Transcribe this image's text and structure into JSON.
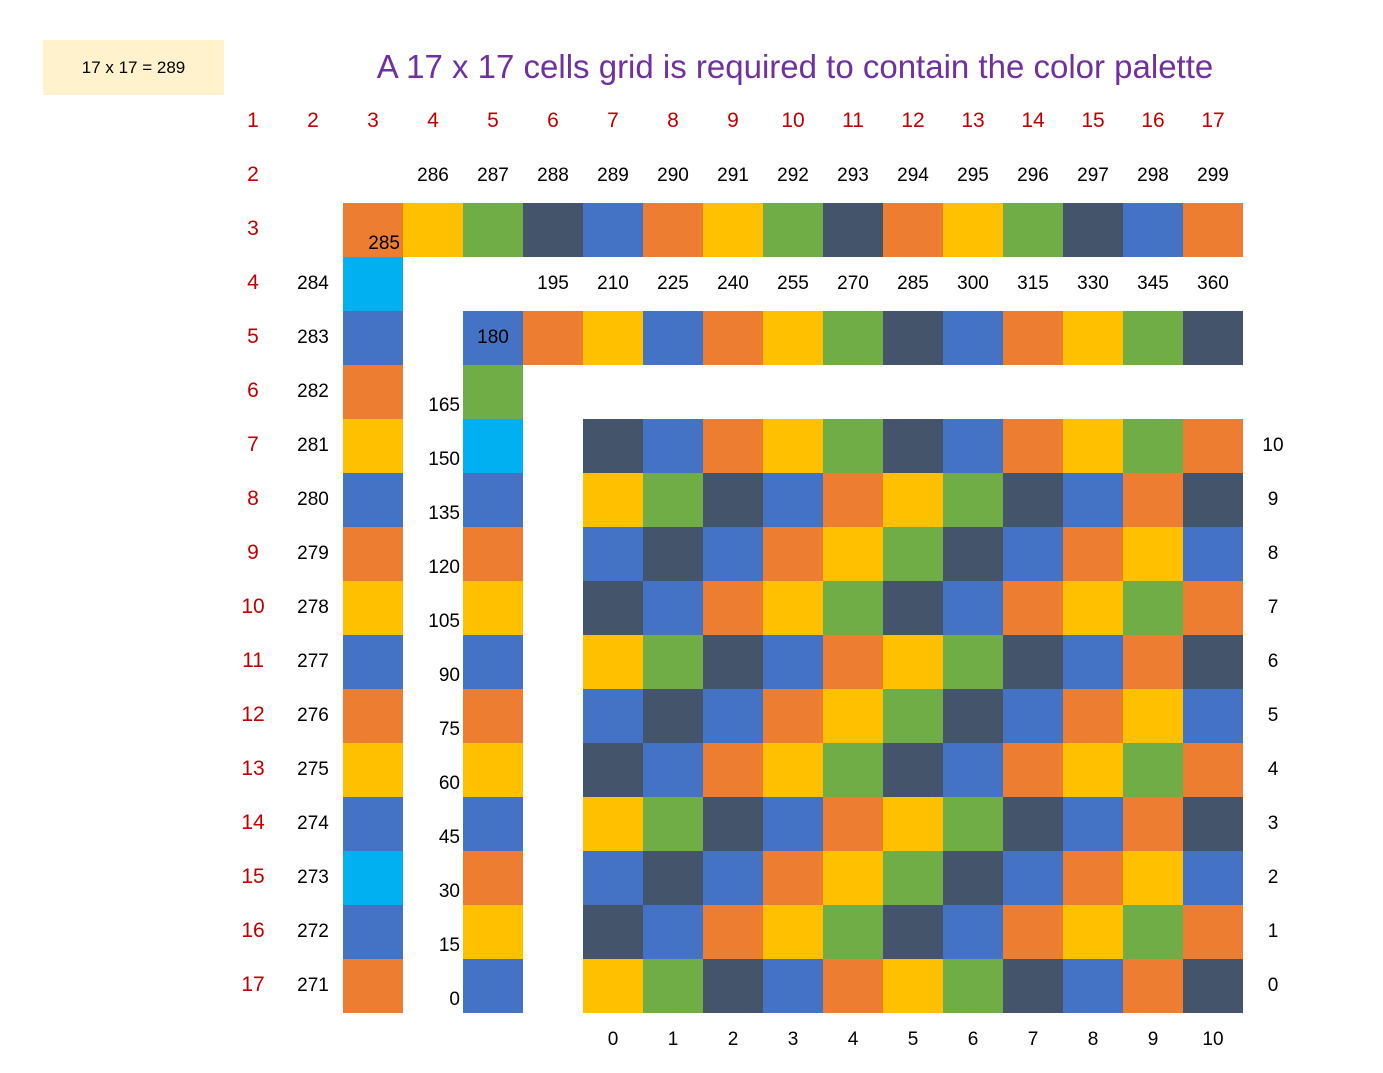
{
  "badge": "17 x 17 = 289",
  "title": "A 17 x 17 cells grid is required to contain the color palette",
  "colors": {
    "O": "#ED7D31",
    "Y": "#FFC000",
    "G": "#70AD47",
    "D": "#44546A",
    "B": "#4472C4",
    "C": "#00B0F0"
  },
  "column_headers": [
    "1",
    "2",
    "3",
    "4",
    "5",
    "6",
    "7",
    "8",
    "9",
    "10",
    "11",
    "12",
    "13",
    "14",
    "15",
    "16",
    "17"
  ],
  "row_headers": [
    "2",
    "3",
    "4",
    "5",
    "6",
    "7",
    "8",
    "9",
    "10",
    "11",
    "12",
    "13",
    "14",
    "15",
    "16",
    "17"
  ],
  "outer_top_numbers": [
    "286",
    "287",
    "288",
    "289",
    "290",
    "291",
    "292",
    "293",
    "294",
    "295",
    "296",
    "297",
    "298",
    "299"
  ],
  "outer_top_start_number": "285",
  "outer_top_colors": [
    "O",
    "Y",
    "G",
    "D",
    "B",
    "O",
    "Y",
    "G",
    "D",
    "O",
    "Y",
    "G",
    "D",
    "B",
    "O"
  ],
  "outer_left_numbers": [
    "284",
    "283",
    "282",
    "281",
    "280",
    "279",
    "278",
    "277",
    "276",
    "275",
    "274",
    "273",
    "272",
    "271"
  ],
  "outer_left_colors": [
    "C",
    "B",
    "O",
    "Y",
    "B",
    "O",
    "Y",
    "B",
    "O",
    "Y",
    "B",
    "C",
    "B",
    "O"
  ],
  "inner_top_numbers": [
    "195",
    "210",
    "225",
    "240",
    "255",
    "270",
    "285",
    "300",
    "315",
    "330",
    "345",
    "360"
  ],
  "inner_top_start_number": "180",
  "inner_top_colors": [
    "B",
    "O",
    "Y",
    "B",
    "O",
    "Y",
    "G",
    "D",
    "B",
    "O",
    "Y",
    "G",
    "D"
  ],
  "inner_left_numbers": [
    "165",
    "150",
    "135",
    "120",
    "105",
    "90",
    "75",
    "60",
    "45",
    "30",
    "15",
    "0"
  ],
  "inner_left_colors": [
    "G",
    "C",
    "B",
    "O",
    "Y",
    "B",
    "O",
    "Y",
    "B",
    "O",
    "Y",
    "B"
  ],
  "main_x_labels": [
    "0",
    "1",
    "2",
    "3",
    "4",
    "5",
    "6",
    "7",
    "8",
    "9",
    "10"
  ],
  "main_y_labels": [
    "10",
    "9",
    "8",
    "7",
    "6",
    "5",
    "4",
    "3",
    "2",
    "1",
    "0"
  ],
  "main_rows": [
    "DBOYGDBOYGO",
    "YGDBOYGDBOD",
    "BDBOYGDBOYB",
    "DBOYGDBOYGO",
    "YGDBOYGDBOD",
    "BDBOYGDBOYB",
    "DBOYGDBOYGO",
    "YGDBOYGDBOD",
    "BDBOYGDBOYB",
    "DBOYGDBOYGO",
    "YGDBOYGDBOD"
  ]
}
